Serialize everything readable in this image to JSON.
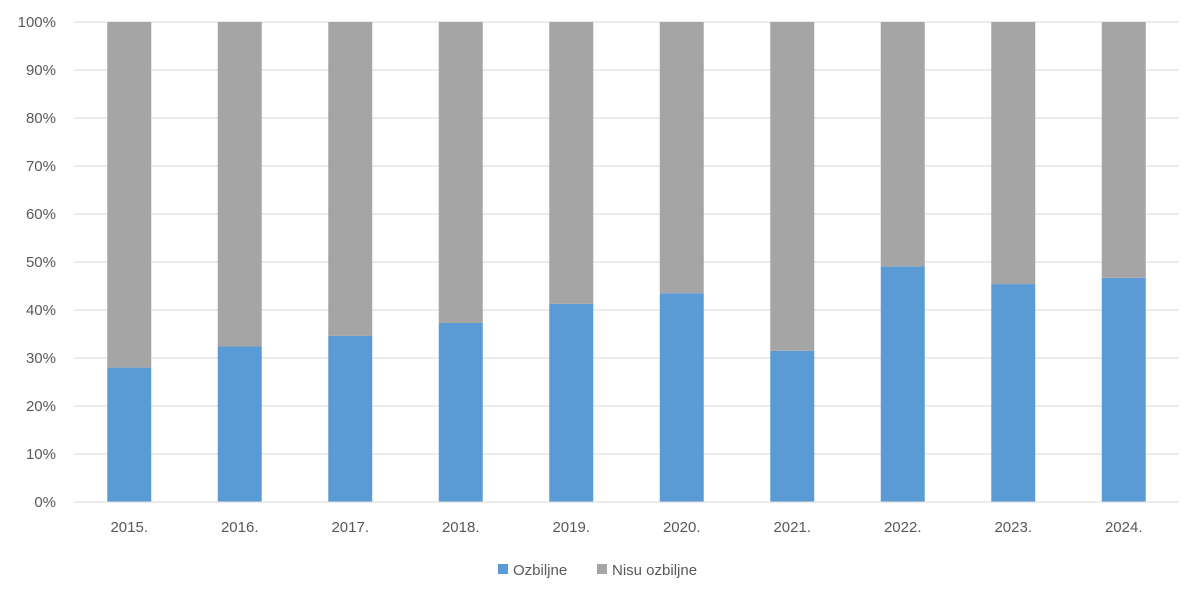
{
  "chart_data": {
    "type": "bar",
    "stacked": true,
    "normalized": true,
    "categories": [
      "2015.",
      "2016.",
      "2017.",
      "2018.",
      "2019.",
      "2020.",
      "2021.",
      "2022.",
      "2023.",
      "2024."
    ],
    "series": [
      {
        "name": "Ozbiljne",
        "color": "#5B9BD5",
        "values": [
          28,
          32.4,
          34.6,
          37.3,
          41.3,
          43.5,
          31.5,
          49.1,
          45.4,
          46.7
        ]
      },
      {
        "name": "Nisu ozbiljne",
        "color": "#A5A5A5",
        "values": [
          72,
          67.6,
          65.4,
          62.7,
          58.7,
          56.5,
          68.5,
          50.9,
          54.6,
          53.3
        ]
      }
    ],
    "yticks": [
      "0%",
      "10%",
      "20%",
      "30%",
      "40%",
      "50%",
      "60%",
      "70%",
      "80%",
      "90%",
      "100%"
    ],
    "ylim": [
      0,
      100
    ],
    "grid": true,
    "legend_position": "bottom"
  }
}
